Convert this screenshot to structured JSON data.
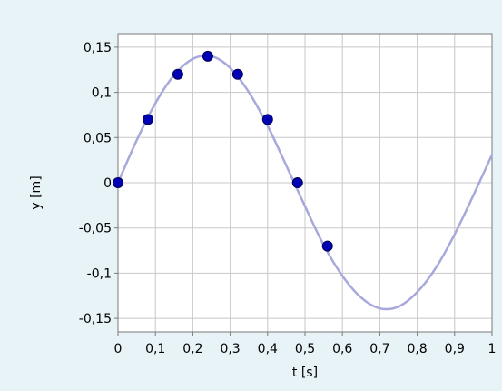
{
  "chart_data": {
    "type": "line",
    "xlabel": "t [s]",
    "ylabel": "y [m]",
    "xlim": [
      0,
      1
    ],
    "ylim": [
      -0.165,
      0.165
    ],
    "grid": true,
    "x_ticks": [
      0,
      0.1,
      0.2,
      0.3,
      0.4,
      0.5,
      0.6,
      0.7,
      0.8,
      0.9,
      1
    ],
    "x_tick_labels": [
      "0",
      "0,1",
      "0,2",
      "0,3",
      "0,4",
      "0,5",
      "0,6",
      "0,7",
      "0,8",
      "0,9",
      "1"
    ],
    "y_ticks": [
      0.15,
      0.1,
      0.05,
      0,
      -0.05,
      -0.1,
      -0.15
    ],
    "y_tick_labels": [
      "0,15",
      "0,1",
      "0,05",
      "0",
      "-0,05",
      "-0,1",
      "-0,15"
    ],
    "series": [
      {
        "kind": "curve",
        "color": "#a8a8dc",
        "x": [
          0,
          0.05,
          0.1,
          0.15,
          0.2,
          0.25,
          0.3,
          0.35,
          0.4,
          0.45,
          0.5,
          0.55,
          0.6,
          0.65,
          0.7,
          0.75,
          0.8,
          0.85,
          0.9,
          0.95,
          1
        ],
        "values": [
          0,
          0.047,
          0.088,
          0.119,
          0.137,
          0.14,
          0.127,
          0.1,
          0.063,
          0.019,
          -0.026,
          -0.069,
          -0.103,
          -0.127,
          -0.139,
          -0.137,
          -0.121,
          -0.094,
          -0.057,
          -0.014,
          0.031
        ]
      },
      {
        "kind": "points",
        "color": "#0000b4",
        "x": [
          0,
          0.08,
          0.16,
          0.24,
          0.32,
          0.4,
          0.48,
          0.56
        ],
        "values": [
          0,
          0.07,
          0.12,
          0.14,
          0.12,
          0.07,
          0,
          -0.07
        ]
      }
    ]
  }
}
